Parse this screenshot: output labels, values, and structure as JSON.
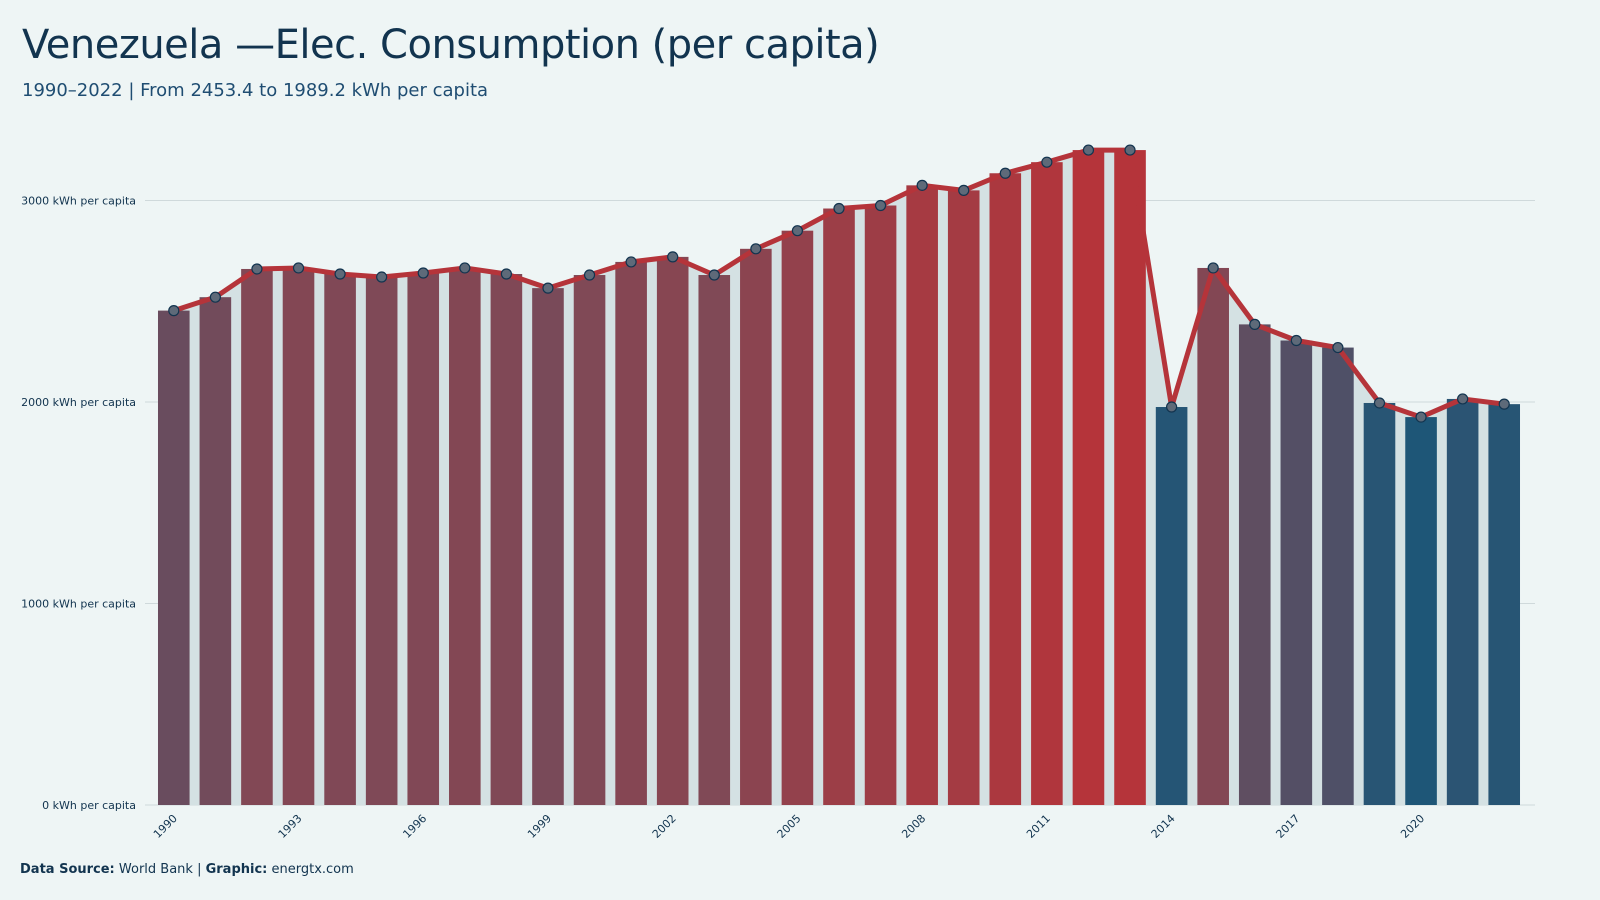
{
  "title": "Venezuela —Elec. Consumption (per capita)",
  "subtitle": "1990–2022 | From 2453.4 to 1989.2  kWh per capita",
  "caption": {
    "source_label": "Data Source:",
    "source_value": " World Bank | ",
    "graphic_label": "Graphic:",
    "graphic_value": " energtx.com"
  },
  "colors": {
    "high": "#b5343a",
    "mid": "#7c4a58",
    "low": "#1e5677",
    "line": "#b5343a",
    "marker_fill": "#5e6a79",
    "marker_stroke": "#12344f",
    "area": "#d4e1e3",
    "grid": "#cfd9db",
    "axis_text": "#12344f"
  },
  "chart_data": {
    "type": "bar",
    "unit": "kWh per capita",
    "x": [
      1990,
      1991,
      1992,
      1993,
      1994,
      1995,
      1996,
      1997,
      1998,
      1999,
      2000,
      2001,
      2002,
      2003,
      2004,
      2005,
      2006,
      2007,
      2008,
      2009,
      2010,
      2011,
      2012,
      2013,
      2014,
      2015,
      2016,
      2017,
      2018,
      2019,
      2020,
      2021,
      2022
    ],
    "values": [
      2453.4,
      2520,
      2660,
      2665,
      2635,
      2620,
      2640,
      2665,
      2635,
      2565,
      2630,
      2695,
      2720,
      2630,
      2760,
      2850,
      2960,
      2975,
      3075,
      3050,
      3135,
      3190,
      3250,
      3250,
      1975,
      2665,
      2385,
      2305,
      2270,
      1995,
      1925,
      2015,
      1989.2
    ],
    "x_tick_labels": [
      "1990",
      "1993",
      "1996",
      "1999",
      "2002",
      "2005",
      "2008",
      "2011",
      "2014",
      "2017",
      "2020"
    ],
    "y_ticks": [
      0,
      1000,
      2000,
      3000
    ],
    "y_tick_labels": [
      "0 kWh per capita",
      "1000 kWh per capita",
      "2000 kWh per capita",
      "3000 kWh per capita"
    ],
    "ylim": [
      0,
      3300
    ],
    "grid": "horizontal",
    "overlay": "line with circular markers over bars, shaded area under line"
  }
}
